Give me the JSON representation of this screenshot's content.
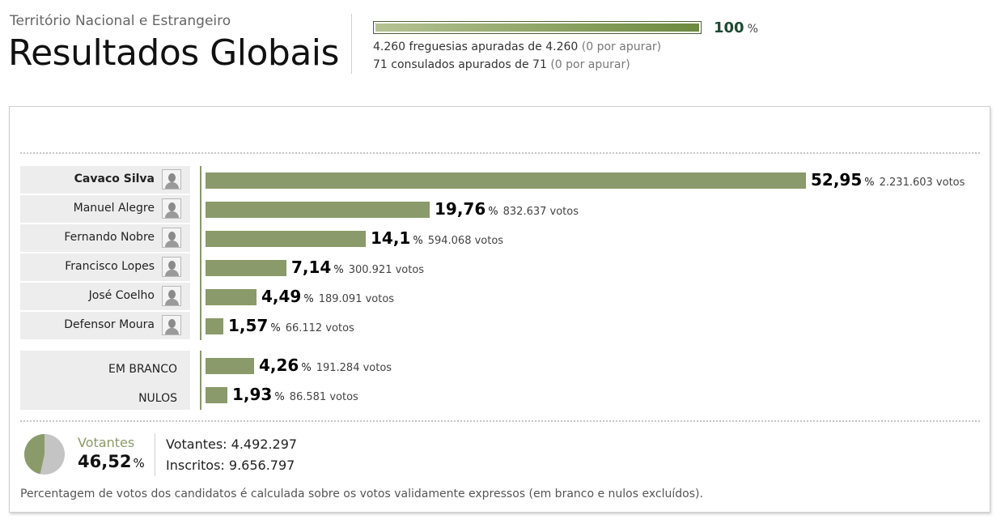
{
  "header": {
    "subtitle": "Território Nacional e Estrangeiro",
    "title": "Resultados Globais"
  },
  "progress": {
    "percent": 100,
    "percent_label": "100",
    "unit": "%",
    "freguesias_text": "4.260 freguesias apuradas de 4.260",
    "freguesias_pending": "(0 por apurar)",
    "consulados_text": "71 consulados apurados de 71",
    "consulados_pending": "(0 por apurar)"
  },
  "chart_data": {
    "type": "bar",
    "orientation": "horizontal",
    "unit": "%",
    "votes_suffix": "votos",
    "candidates": [
      {
        "name": "Cavaco Silva",
        "pct": 52.95,
        "pct_label": "52,95",
        "votes": "2.231.603",
        "bold": true
      },
      {
        "name": "Manuel Alegre",
        "pct": 19.76,
        "pct_label": "19,76",
        "votes": "832.637",
        "bold": false
      },
      {
        "name": "Fernando Nobre",
        "pct": 14.1,
        "pct_label": "14,1",
        "votes": "594.068",
        "bold": false
      },
      {
        "name": "Francisco Lopes",
        "pct": 7.14,
        "pct_label": "7,14",
        "votes": "300.921",
        "bold": false
      },
      {
        "name": "José Coelho",
        "pct": 4.49,
        "pct_label": "4,49",
        "votes": "189.091",
        "bold": false
      },
      {
        "name": "Defensor Moura",
        "pct": 1.57,
        "pct_label": "1,57",
        "votes": "66.112",
        "bold": false
      }
    ],
    "others": [
      {
        "name": "EM BRANCO",
        "pct": 4.26,
        "pct_label": "4,26",
        "votes": "191.284"
      },
      {
        "name": "NULOS",
        "pct": 1.93,
        "pct_label": "1,93",
        "votes": "86.581"
      }
    ]
  },
  "turnout": {
    "label": "Votantes",
    "pct": 46.52,
    "pct_label": "46,52",
    "unit": "%",
    "votantes_label": "Votantes:",
    "votantes_value": "4.492.297",
    "inscritos_label": "Inscritos:",
    "inscritos_value": "9.656.797"
  },
  "colors": {
    "bar": "#8a9a6a",
    "pie_voters": "#8a9a6a",
    "pie_rest": "#c4c4c4"
  },
  "footnote": "Percentagem de votos dos candidatos é calculada sobre os votos validamente expressos (em branco e nulos excluídos)."
}
